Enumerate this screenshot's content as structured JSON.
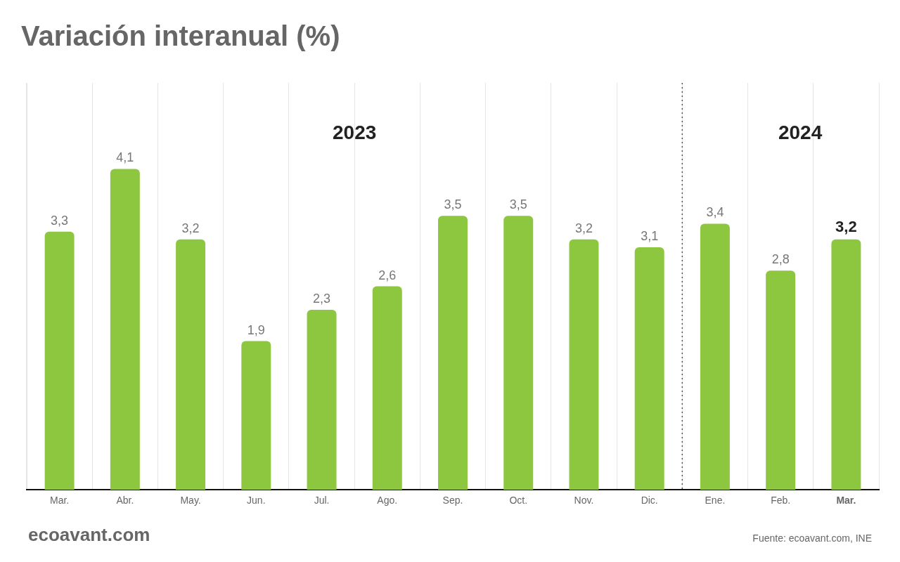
{
  "chart_data": {
    "type": "bar",
    "title": "Variación interanual (%)",
    "categories": [
      "Mar.",
      "Abr.",
      "May.",
      "Jun.",
      "Jul.",
      "Ago.",
      "Sep.",
      "Oct.",
      "Nov.",
      "Dic.",
      "Ene.",
      "Feb.",
      "Mar."
    ],
    "values": [
      3.3,
      4.1,
      3.2,
      1.9,
      2.3,
      2.6,
      3.5,
      3.5,
      3.2,
      3.1,
      3.4,
      2.8,
      3.2
    ],
    "value_labels": [
      "3,3",
      "4,1",
      "3,2",
      "1,9",
      "2,3",
      "2,6",
      "3,5",
      "3,5",
      "3,2",
      "3,1",
      "3,4",
      "2,8",
      "3,2"
    ],
    "color": "#8dc63f",
    "ylim": [
      0,
      5.2
    ],
    "yticks": [],
    "tick_labels": "x",
    "grid": true,
    "data_labels": true,
    "annotations": [
      {
        "text": "2023",
        "x": 4.5,
        "y": 4.55
      },
      {
        "text": "2024",
        "x": 11.3,
        "y": 4.55
      },
      {
        "x": 9.5,
        "line_style": "dotted"
      }
    ],
    "source": "Fuente: ecoavant.com, INE",
    "logo": "ecoavant.com"
  }
}
